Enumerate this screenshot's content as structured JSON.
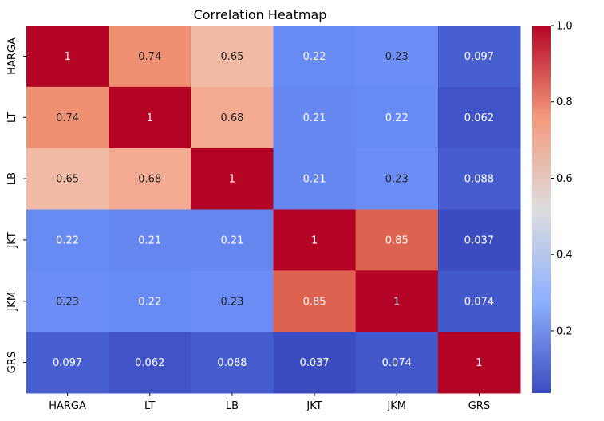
{
  "chart_data": {
    "type": "heatmap",
    "title": "Correlation Heatmap",
    "xlabel": "",
    "ylabel": "",
    "x_categories": [
      "HARGA",
      "LT",
      "LB",
      "JKT",
      "JKM",
      "GRS"
    ],
    "y_categories": [
      "HARGA",
      "LT",
      "LB",
      "JKT",
      "JKM",
      "GRS"
    ],
    "values": [
      [
        1,
        0.74,
        0.65,
        0.22,
        0.23,
        0.097
      ],
      [
        0.74,
        1,
        0.68,
        0.21,
        0.22,
        0.062
      ],
      [
        0.65,
        0.68,
        1,
        0.21,
        0.23,
        0.088
      ],
      [
        0.22,
        0.21,
        0.21,
        1,
        0.85,
        0.037
      ],
      [
        0.23,
        0.22,
        0.23,
        0.85,
        1,
        0.074
      ],
      [
        0.097,
        0.062,
        0.088,
        0.037,
        0.074,
        1
      ]
    ],
    "cell_labels": [
      [
        "1",
        "0.74",
        "0.65",
        "0.22",
        "0.23",
        "0.097"
      ],
      [
        "0.74",
        "1",
        "0.68",
        "0.21",
        "0.22",
        "0.062"
      ],
      [
        "0.65",
        "0.68",
        "1",
        "0.21",
        "0.23",
        "0.088"
      ],
      [
        "0.22",
        "0.21",
        "0.21",
        "1",
        "0.85",
        "0.037"
      ],
      [
        "0.23",
        "0.22",
        "0.23",
        "0.85",
        "1",
        "0.074"
      ],
      [
        "0.097",
        "0.062",
        "0.088",
        "0.037",
        "0.074",
        "1"
      ]
    ],
    "colormap": "coolwarm",
    "color_range": [
      0.037,
      1.0
    ],
    "colorbar_ticks": [
      0.2,
      0.4,
      0.6,
      0.8,
      1.0
    ],
    "colorbar_tick_labels": [
      "0.2",
      "0.4",
      "0.6",
      "0.8",
      "1.0"
    ],
    "colorbar_position": "right",
    "grid": false
  }
}
